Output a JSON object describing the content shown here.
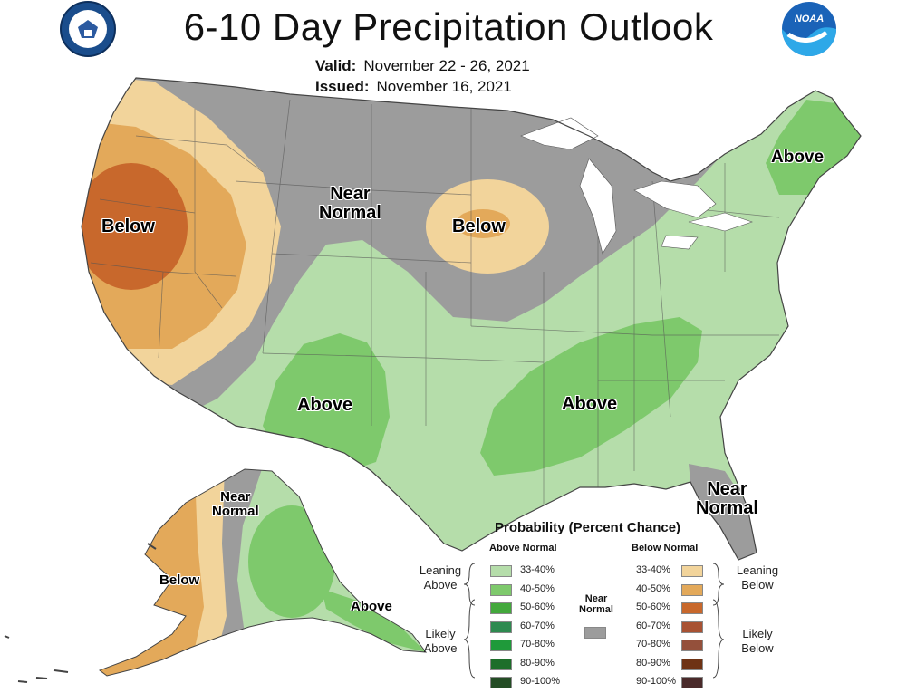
{
  "title": "6-10 Day Precipitation Outlook",
  "valid": {
    "label": "Valid:",
    "value": "November 22 - 26, 2021"
  },
  "issued": {
    "label": "Issued:",
    "value": "November 16, 2021"
  },
  "logos": {
    "left": "department-of-commerce-seal",
    "right": "noaa-logo",
    "noaa_text": "NOAA"
  },
  "region_labels": {
    "west_below": "Below",
    "north_near_normal": [
      "Near",
      "Normal"
    ],
    "midwest_below": "Below",
    "northeast_above": "Above",
    "southwest_above": "Above",
    "southeast_above": "Above",
    "florida_near_normal": [
      "Near",
      "Normal"
    ],
    "alaska_near_normal": [
      "Near",
      "Normal"
    ],
    "alaska_below": "Below",
    "alaska_above": "Above"
  },
  "legend": {
    "title": "Probability (Percent Chance)",
    "above_header": "Above Normal",
    "below_header": "Below Normal",
    "near_normal": [
      "Near",
      "Normal"
    ],
    "leaning_above": [
      "Leaning",
      "Above"
    ],
    "likely_above": [
      "Likely",
      "Above"
    ],
    "leaning_below": [
      "Leaning",
      "Below"
    ],
    "likely_below": [
      "Likely",
      "Below"
    ],
    "above_levels": [
      "33-40%",
      "40-50%",
      "50-60%",
      "60-70%",
      "70-80%",
      "80-90%",
      "90-100%"
    ],
    "below_levels": [
      "33-40%",
      "40-50%",
      "50-60%",
      "60-70%",
      "70-80%",
      "80-90%",
      "90-100%"
    ],
    "above_colors": [
      "#b5ddaa",
      "#7ec96c",
      "#43a83c",
      "#2e8a50",
      "#1f9a3a",
      "#1d6e2a",
      "#244d25"
    ],
    "below_colors": [
      "#f2d49b",
      "#e3a95a",
      "#c8682c",
      "#a85233",
      "#94503b",
      "#6e3214",
      "#4a2a2a"
    ],
    "near_color": "#9c9c9c"
  }
}
